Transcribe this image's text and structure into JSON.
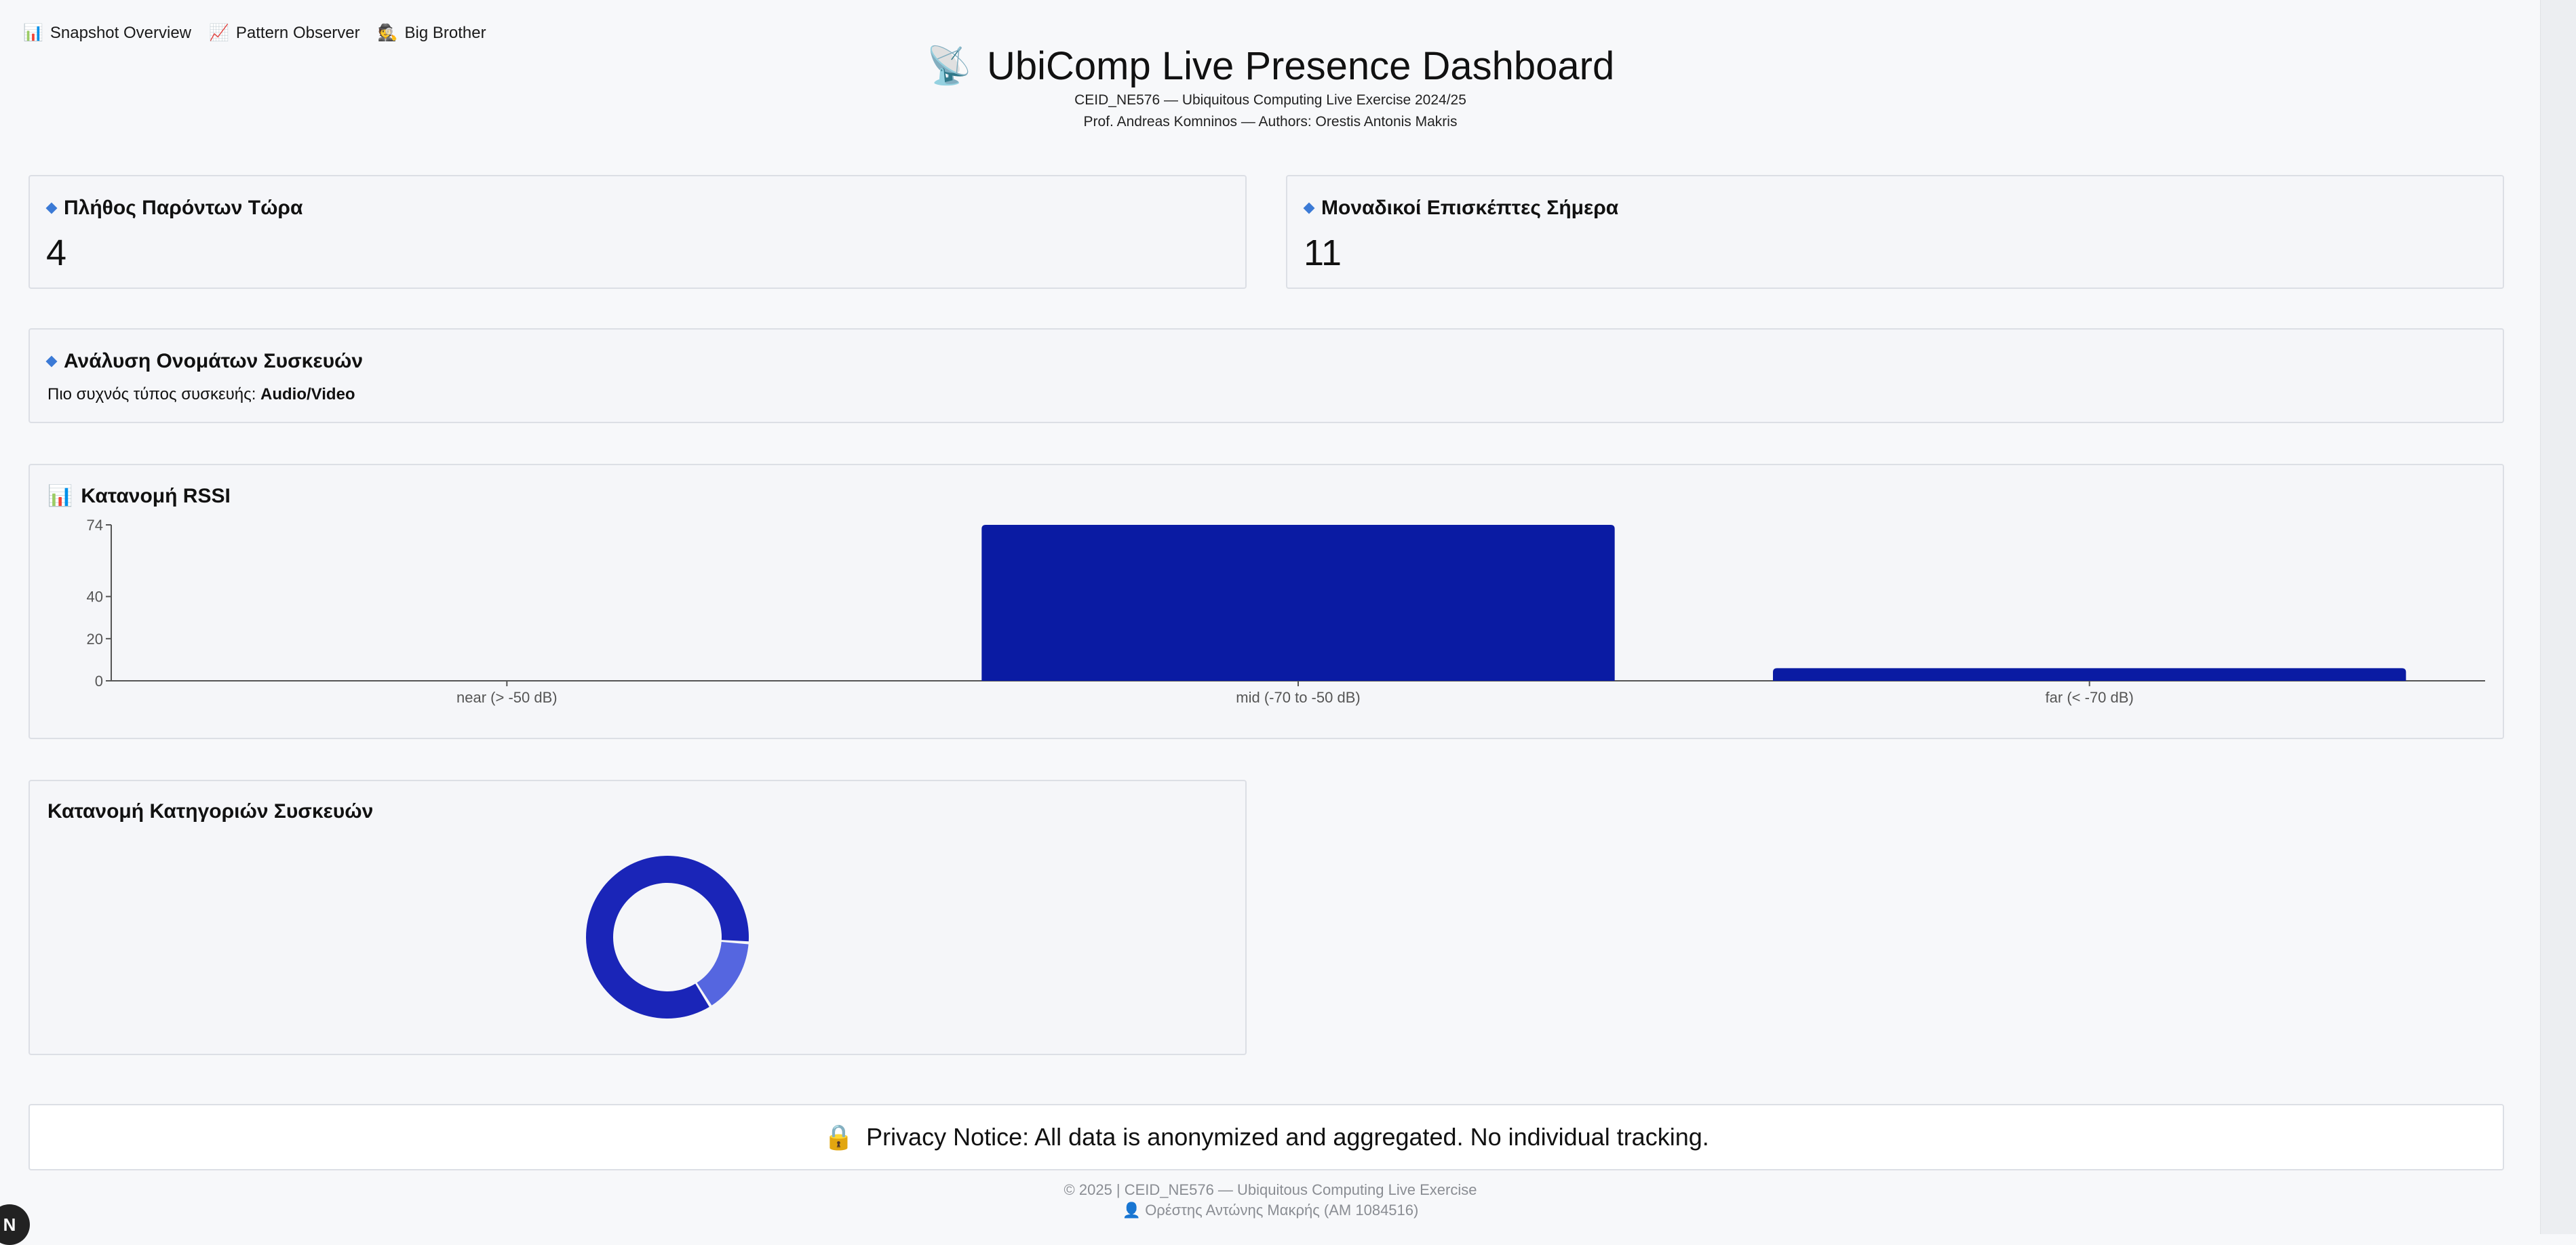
{
  "nav": {
    "items": [
      {
        "icon": "bar-chart-icon",
        "glyph": "📊",
        "label": "Snapshot Overview"
      },
      {
        "icon": "line-chart-icon",
        "glyph": "📈",
        "label": "Pattern Observer"
      },
      {
        "icon": "detective-icon",
        "glyph": "🕵️",
        "label": "Big Brother"
      }
    ]
  },
  "header": {
    "icon": "satellite-dish-icon",
    "icon_glyph": "📡",
    "title": "UbiComp Live Presence Dashboard",
    "subtitle1": "CEID_NE576 — Ubiquitous Computing Live Exercise 2024/25",
    "subtitle2": "Prof. Andreas Komninos — Authors: Orestis Antonis Makris"
  },
  "present_now": {
    "label": "Πλήθος Παρόντων Τώρα",
    "value": "4"
  },
  "unique_today": {
    "label": "Μοναδικοί Επισκέπτες Σήμερα",
    "value": "11"
  },
  "device_names": {
    "label": "Ανάλυση Ονομάτων Συσκευών",
    "most_common_prefix": "Πιο συχνός τύπος συσκευής:",
    "most_common_value": "Audio/Video"
  },
  "rssi": {
    "label": "Κατανομή RSSI",
    "icon_glyph": "📊"
  },
  "categories": {
    "label": "Κατανομή Κατηγοριών Συσκευών"
  },
  "chart_data": [
    {
      "type": "bar",
      "title": "Κατανομή RSSI",
      "categories": [
        "near (> -50 dB)",
        "mid (-70 to -50 dB)",
        "far (< -70 dB)"
      ],
      "values": [
        0,
        74,
        6
      ],
      "yticks": [
        0,
        20,
        40,
        74
      ],
      "ylim": [
        0,
        74
      ],
      "grid": false,
      "color": "#0a1ba3"
    },
    {
      "type": "pie",
      "title": "Κατανομή Κατηγοριών Συσκευών",
      "values": [
        85,
        15
      ],
      "colors": [
        "#1a25b8",
        "#5566e0"
      ],
      "donut": true
    }
  ],
  "privacy": {
    "icon_glyph": "🔒",
    "text": "Privacy Notice: All data is anonymized and aggregated. No individual tracking."
  },
  "footer": {
    "line1": "© 2025 | CEID_NE576 — Ubiquitous Computing Live Exercise",
    "icon_glyph": "👤",
    "line2": "Ορέστης Αντώνης Μακρής (AM 1084516)"
  },
  "corner_badge": "N"
}
